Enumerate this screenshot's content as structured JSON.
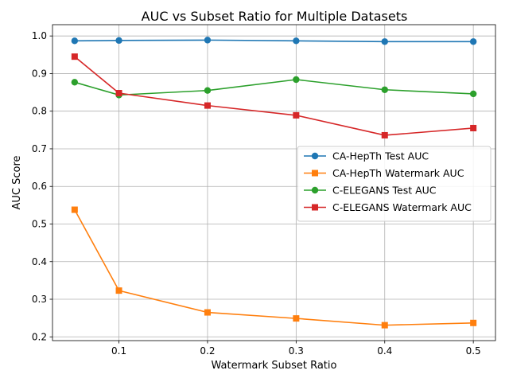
{
  "chart_data": {
    "type": "line",
    "title": "AUC vs Subset Ratio for Multiple Datasets",
    "xlabel": "Watermark Subset Ratio",
    "ylabel": "AUC Score",
    "x": [
      0.05,
      0.1,
      0.2,
      0.3,
      0.4,
      0.5
    ],
    "xlim": [
      0.025,
      0.525
    ],
    "ylim": [
      0.19,
      1.03
    ],
    "x_ticks": [
      0.1,
      0.2,
      0.3,
      0.4,
      0.5
    ],
    "x_tick_labels": [
      "0.1",
      "0.2",
      "0.3",
      "0.4",
      "0.5"
    ],
    "y_ticks": [
      0.2,
      0.3,
      0.4,
      0.5,
      0.6,
      0.7,
      0.8,
      0.9,
      1.0
    ],
    "y_tick_labels": [
      "0.2",
      "0.3",
      "0.4",
      "0.5",
      "0.6",
      "0.7",
      "0.8",
      "0.9",
      "1.0"
    ],
    "grid": true,
    "legend_position": "center-right",
    "series": [
      {
        "name": "CA-HepTh Test AUC",
        "color": "#1f77b4",
        "marker": "circle",
        "values": [
          0.987,
          0.988,
          0.989,
          0.987,
          0.985,
          0.985
        ]
      },
      {
        "name": "CA-HepTh Watermark AUC",
        "color": "#ff7f0e",
        "marker": "square",
        "values": [
          0.538,
          0.323,
          0.265,
          0.249,
          0.231,
          0.237
        ]
      },
      {
        "name": "C-ELEGANS Test AUC",
        "color": "#2ca02c",
        "marker": "circle",
        "values": [
          0.877,
          0.843,
          0.855,
          0.884,
          0.857,
          0.846
        ]
      },
      {
        "name": "C-ELEGANS Watermark AUC",
        "color": "#d62728",
        "marker": "square",
        "values": [
          0.945,
          0.848,
          0.815,
          0.789,
          0.736,
          0.755
        ]
      }
    ]
  }
}
